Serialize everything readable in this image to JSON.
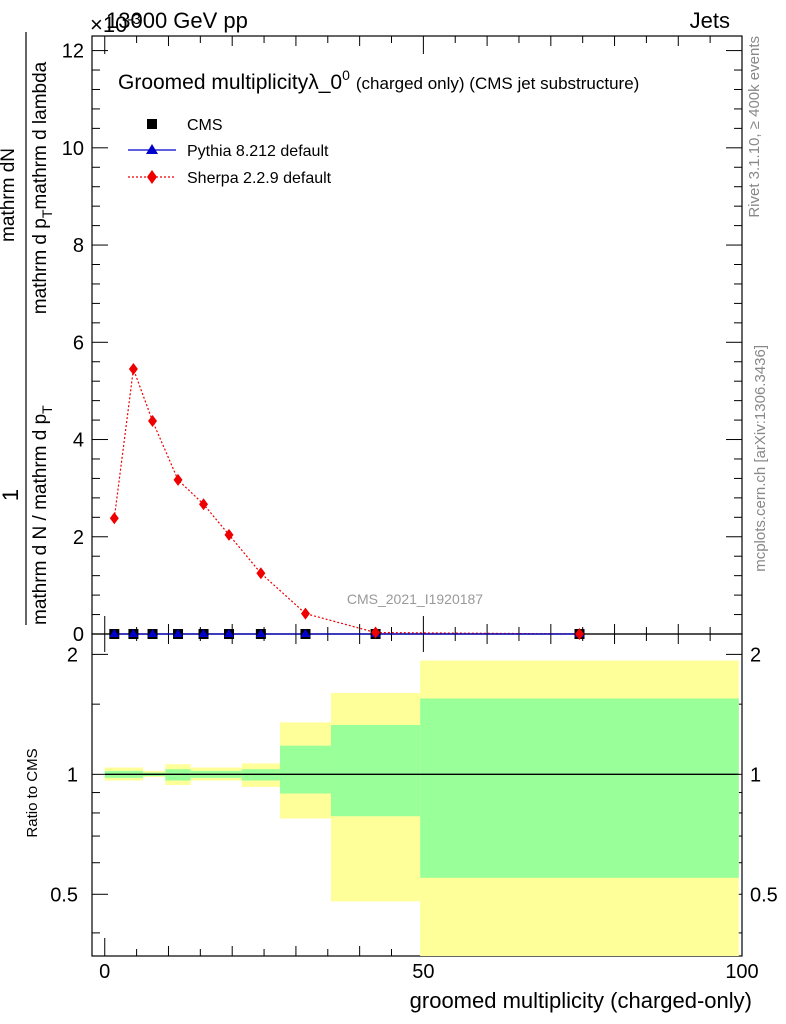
{
  "header": {
    "left": "13000 GeV pp",
    "right": "Jets",
    "exponent": "×10",
    "exponent_power": "-3"
  },
  "side_labels": {
    "rivet": "Rivet 3.1.10, ≥ 400k events",
    "mcplots": "mcplots.cern.ch [arXiv:1306.3436]"
  },
  "title": {
    "main": "Groomed multiplicityλ_0",
    "superscript": "0",
    "sub": "(charged only) (CMS jet substructure)"
  },
  "watermark": "CMS_2021_I1920187",
  "legend": [
    {
      "label": "CMS",
      "marker": "square",
      "color": "#000000"
    },
    {
      "label": "Pythia 8.212 default",
      "marker": "triangle",
      "color": "#0000cc"
    },
    {
      "label": "Sherpa 2.2.9 default",
      "marker": "diamond",
      "color": "#ee0000"
    }
  ],
  "colors": {
    "yellow_band": "#ffff99",
    "green_band": "#99ff99",
    "sherpa": "#ee0000",
    "pythia": "#0000cc",
    "data": "#000000"
  },
  "chart_data": [
    {
      "type": "line",
      "ylabel_parts": [
        "1",
        "mathrm d N / mathrm d p",
        "T",
        "mathrm d N",
        "mathrm d p",
        "T",
        "mathrm d lambda"
      ],
      "ylabel_numerator": "mathrm dN",
      "ylim": [
        0,
        12.3
      ],
      "y_scale_note": "×10^-3",
      "yticks": [
        0,
        2,
        4,
        6,
        8,
        10,
        12
      ],
      "xlim": [
        -2,
        100
      ],
      "series": [
        {
          "name": "CMS",
          "x": [
            1.5,
            4.5,
            7.5,
            11.5,
            15.5,
            19.5,
            24.5,
            31.5,
            42.5,
            74.5
          ],
          "y": [
            0,
            0,
            0,
            0,
            0,
            0,
            0,
            0,
            0,
            0
          ]
        },
        {
          "name": "Pythia 8.212 default",
          "x": [
            1.5,
            4.5,
            7.5,
            11.5,
            15.5,
            19.5,
            24.5,
            31.5,
            42.5,
            74.5
          ],
          "y": [
            0,
            0,
            0,
            0,
            0,
            0,
            0,
            0,
            0,
            0
          ]
        },
        {
          "name": "Sherpa 2.2.9 default",
          "x": [
            1.5,
            4.5,
            7.5,
            11.5,
            15.5,
            19.5,
            24.5,
            31.5,
            42.5,
            74.5
          ],
          "y": [
            2.38,
            5.45,
            4.38,
            3.17,
            2.67,
            2.04,
            1.25,
            0.42,
            0.03,
            0.0
          ]
        }
      ]
    },
    {
      "type": "area",
      "ylabel": "Ratio to CMS",
      "xlabel": "groomed multiplicity (charged-only)",
      "xlim": [
        -2,
        100
      ],
      "xticks": [
        0,
        50,
        100
      ],
      "ylim": [
        0.35,
        2.25
      ],
      "yticks": [
        0.5,
        1,
        2
      ],
      "ytick_labels": [
        "0.5",
        "1",
        "2"
      ],
      "bands": [
        {
          "x0": 0,
          "x1": 6,
          "yellow": [
            0.965,
            1.04
          ],
          "green": [
            0.98,
            1.02
          ]
        },
        {
          "x0": 6,
          "x1": 9.5,
          "yellow": [
            0.985,
            1.02
          ],
          "green": [
            0.99,
            1.01
          ]
        },
        {
          "x0": 9.5,
          "x1": 13.5,
          "yellow": [
            0.94,
            1.06
          ],
          "green": [
            0.965,
            1.03
          ]
        },
        {
          "x0": 13.5,
          "x1": 21.5,
          "yellow": [
            0.965,
            1.04
          ],
          "green": [
            0.98,
            1.02
          ]
        },
        {
          "x0": 21.5,
          "x1": 27.5,
          "yellow": [
            0.93,
            1.065
          ],
          "green": [
            0.965,
            1.03
          ]
        },
        {
          "x0": 27.5,
          "x1": 35.5,
          "yellow": [
            0.775,
            1.35
          ],
          "green": [
            0.895,
            1.18
          ]
        },
        {
          "x0": 35.5,
          "x1": 49.5,
          "yellow": [
            0.48,
            1.6
          ],
          "green": [
            0.785,
            1.33
          ]
        },
        {
          "x0": 49.5,
          "x1": 99.5,
          "yellow": [
            0.3,
            1.93
          ],
          "green": [
            0.55,
            1.55
          ]
        }
      ],
      "series": [
        {
          "name": "CMS",
          "x": [
            0,
            99.5
          ],
          "y": [
            1,
            1
          ]
        }
      ]
    }
  ]
}
